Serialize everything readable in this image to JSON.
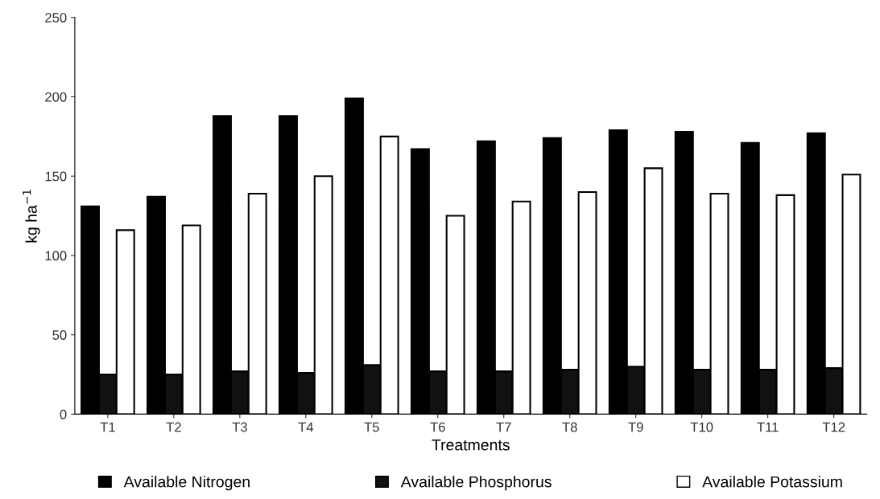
{
  "chart_data": {
    "type": "bar",
    "xlabel": "Treatments",
    "ylabel": "kg ha$^{−1}$",
    "categories": [
      "T1",
      "T2",
      "T3",
      "T4",
      "T5",
      "T6",
      "T7",
      "T8",
      "T9",
      "T10",
      "T11",
      "T12"
    ],
    "series": [
      {
        "name": "Available Nitrogen",
        "color": "#000000",
        "values": [
          131,
          137,
          188,
          188,
          199,
          167,
          172,
          174,
          179,
          178,
          171,
          177
        ]
      },
      {
        "name": "Available Phosphorus",
        "color": "#111111",
        "values": [
          25,
          25,
          27,
          26,
          31,
          27,
          27,
          28,
          30,
          28,
          28,
          29
        ]
      },
      {
        "name": "Available Potassium",
        "color": "#ffffff",
        "values": [
          116,
          119,
          139,
          150,
          175,
          125,
          134,
          140,
          155,
          139,
          138,
          151
        ]
      }
    ],
    "ylim": [
      0,
      250
    ],
    "yticks": [
      0,
      50,
      100,
      150,
      200,
      250
    ],
    "grid": false,
    "legend": "bottom"
  }
}
